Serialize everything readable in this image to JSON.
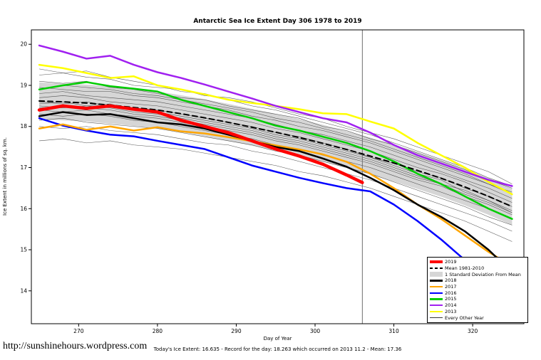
{
  "page": {
    "url_text": "http://sunshinehours.wordpress.com"
  },
  "chart_data": {
    "type": "line",
    "title": "Antarctic Sea Ice Extent Day 306 1978 to 2019",
    "xlabel": "Day of Year",
    "ylabel": "Ice Extent in millions of sq. km.",
    "footer": "Today's Ice Extent: 16.635  - Record for the day: 18.263 which occurred on 2013 11.2  - Mean: 17.36",
    "stats": {
      "today_extent": 16.635,
      "record": 18.263,
      "record_date": "2013 11.2",
      "mean": 17.36,
      "day": 306
    },
    "xlim": [
      264,
      326.5
    ],
    "ylim": [
      13.2,
      20.35
    ],
    "xticks": [
      270,
      280,
      290,
      300,
      310,
      320
    ],
    "yticks": [
      14,
      15,
      16,
      17,
      18,
      19,
      20
    ],
    "vline_x": 306,
    "grid": false,
    "legend_position": "bottom-right",
    "x": [
      265,
      268,
      271,
      274,
      277,
      280,
      283,
      286,
      289,
      292,
      295,
      298,
      301,
      304,
      307,
      310,
      313,
      316,
      319,
      322,
      325
    ],
    "band": {
      "label": "1 Standard Deviation From Mean",
      "color": "#D6D6D6",
      "upper": [
        19.07,
        19.05,
        19.02,
        18.97,
        18.91,
        18.85,
        18.76,
        18.66,
        18.55,
        18.43,
        18.31,
        18.18,
        18.04,
        17.89,
        17.73,
        17.56,
        17.38,
        17.19,
        16.98,
        16.75,
        16.5
      ],
      "lower": [
        18.17,
        18.15,
        18.12,
        18.07,
        18.01,
        17.95,
        17.86,
        17.76,
        17.65,
        17.53,
        17.41,
        17.28,
        17.14,
        16.99,
        16.83,
        16.66,
        16.48,
        16.29,
        16.08,
        15.85,
        15.6
      ]
    },
    "series": [
      {
        "label": "2013",
        "color": "#FFFF00",
        "width": 2.5,
        "y": [
          19.5,
          19.42,
          19.3,
          19.18,
          19.22,
          19.0,
          18.9,
          18.78,
          18.65,
          18.57,
          18.5,
          18.42,
          18.32,
          18.3,
          18.12,
          17.95,
          17.6,
          17.3,
          17.0,
          16.65,
          16.35
        ]
      },
      {
        "label": "2014",
        "color": "#A020F0",
        "width": 2.5,
        "y": [
          19.97,
          19.82,
          19.65,
          19.72,
          19.5,
          19.32,
          19.18,
          19.02,
          18.85,
          18.68,
          18.5,
          18.35,
          18.2,
          18.1,
          17.85,
          17.55,
          17.3,
          17.1,
          16.9,
          16.7,
          16.55
        ]
      },
      {
        "label": "2015",
        "color": "#00CD00",
        "width": 2.5,
        "y": [
          18.9,
          19.0,
          19.08,
          18.98,
          18.92,
          18.85,
          18.65,
          18.5,
          18.35,
          18.2,
          18.02,
          17.9,
          17.75,
          17.6,
          17.4,
          17.15,
          16.85,
          16.6,
          16.3,
          16.0,
          15.75
        ]
      },
      {
        "label": "2016",
        "color": "#0000FF",
        "width": 2.5,
        "y": [
          18.2,
          18.02,
          17.9,
          17.8,
          17.76,
          17.65,
          17.55,
          17.45,
          17.25,
          17.05,
          16.9,
          16.75,
          16.62,
          16.5,
          16.42,
          16.1,
          15.7,
          15.25,
          14.75,
          14.3,
          13.8
        ]
      },
      {
        "label": "2017",
        "color": "#FFA500",
        "width": 2.5,
        "y": [
          17.95,
          18.05,
          17.92,
          18.0,
          17.9,
          17.98,
          17.88,
          17.83,
          17.74,
          17.64,
          17.54,
          17.44,
          17.32,
          17.14,
          16.85,
          16.5,
          16.1,
          15.75,
          15.35,
          14.95,
          14.6
        ]
      },
      {
        "label": "2018",
        "color": "#000000",
        "width": 2.5,
        "y": [
          18.25,
          18.35,
          18.28,
          18.3,
          18.2,
          18.1,
          18.05,
          17.95,
          17.8,
          17.65,
          17.5,
          17.4,
          17.22,
          17.02,
          16.75,
          16.45,
          16.1,
          15.8,
          15.45,
          15.0,
          14.45
        ]
      },
      {
        "label": "Mean 1981-2010",
        "color": "#000000",
        "width": 2,
        "dash": true,
        "y": [
          18.62,
          18.6,
          18.57,
          18.52,
          18.46,
          18.4,
          18.31,
          18.21,
          18.1,
          17.98,
          17.86,
          17.73,
          17.59,
          17.44,
          17.28,
          17.11,
          16.93,
          16.74,
          16.53,
          16.3,
          16.05
        ]
      },
      {
        "label": "2019",
        "color": "#FF0000",
        "width": 4.5,
        "x": [
          265,
          268,
          271,
          274,
          277,
          280,
          283,
          286,
          289,
          292,
          295,
          298,
          301,
          304,
          306
        ],
        "y": [
          18.4,
          18.5,
          18.44,
          18.5,
          18.42,
          18.35,
          18.15,
          18.0,
          17.85,
          17.65,
          17.45,
          17.28,
          17.08,
          16.82,
          16.635
        ]
      }
    ],
    "background_series": {
      "label": "Every Other Year",
      "color": "#3A3A3A",
      "width": 0.55,
      "lines": [
        [
          19.25,
          19.3,
          19.2,
          19.15,
          19.0,
          18.95,
          18.9,
          18.75,
          18.7,
          18.6,
          18.45,
          18.3,
          18.2,
          18.0,
          17.85,
          17.7,
          17.5,
          17.3,
          17.1,
          16.9,
          16.6
        ],
        [
          19.1,
          19.05,
          19.1,
          18.95,
          18.9,
          18.8,
          18.7,
          18.65,
          18.5,
          18.4,
          18.3,
          18.2,
          18.0,
          17.9,
          17.7,
          17.55,
          17.35,
          17.15,
          16.95,
          16.7,
          16.5
        ],
        [
          18.95,
          18.9,
          18.85,
          18.85,
          18.75,
          18.7,
          18.6,
          18.5,
          18.4,
          18.25,
          18.15,
          18.0,
          17.9,
          17.75,
          17.6,
          17.4,
          17.2,
          17.0,
          16.8,
          16.6,
          16.35
        ],
        [
          18.8,
          18.85,
          18.75,
          18.7,
          18.65,
          18.6,
          18.5,
          18.4,
          18.3,
          18.2,
          18.05,
          17.9,
          17.8,
          17.65,
          17.5,
          17.3,
          17.1,
          16.9,
          16.7,
          16.5,
          16.25
        ],
        [
          18.7,
          18.75,
          18.7,
          18.6,
          18.55,
          18.5,
          18.4,
          18.3,
          18.2,
          18.1,
          17.95,
          17.85,
          17.7,
          17.55,
          17.4,
          17.2,
          17.0,
          16.85,
          16.65,
          16.4,
          16.15
        ],
        [
          18.6,
          18.55,
          18.6,
          18.5,
          18.45,
          18.4,
          18.3,
          18.2,
          18.1,
          18.0,
          17.85,
          17.75,
          17.6,
          17.45,
          17.25,
          17.1,
          16.9,
          16.75,
          16.5,
          16.3,
          16.05
        ],
        [
          18.5,
          18.45,
          18.5,
          18.45,
          18.35,
          18.3,
          18.2,
          18.1,
          18.0,
          17.9,
          17.75,
          17.65,
          17.5,
          17.35,
          17.2,
          17.0,
          16.8,
          16.6,
          16.45,
          16.2,
          15.95
        ],
        [
          18.4,
          18.35,
          18.4,
          18.3,
          18.25,
          18.2,
          18.1,
          18.0,
          17.9,
          17.8,
          17.65,
          17.55,
          17.4,
          17.25,
          17.1,
          16.9,
          16.7,
          16.55,
          16.3,
          16.1,
          15.85
        ],
        [
          18.3,
          18.25,
          18.3,
          18.25,
          18.15,
          18.1,
          18.0,
          17.9,
          17.8,
          17.7,
          17.55,
          17.45,
          17.3,
          17.15,
          17.0,
          16.8,
          16.6,
          16.4,
          16.2,
          16.0,
          15.75
        ],
        [
          18.15,
          18.2,
          18.1,
          18.05,
          18.0,
          17.95,
          17.85,
          17.75,
          17.65,
          17.55,
          17.4,
          17.3,
          17.15,
          17.0,
          16.85,
          16.65,
          16.45,
          16.25,
          16.05,
          15.8,
          15.6
        ],
        [
          18.0,
          17.95,
          18.0,
          17.9,
          17.85,
          17.8,
          17.7,
          17.6,
          17.55,
          17.4,
          17.3,
          17.15,
          17.0,
          16.85,
          16.7,
          16.5,
          16.3,
          16.1,
          15.9,
          15.7,
          15.45
        ],
        [
          17.65,
          17.7,
          17.6,
          17.65,
          17.55,
          17.5,
          17.45,
          17.35,
          17.25,
          17.15,
          17.05,
          16.9,
          16.8,
          16.65,
          16.5,
          16.3,
          16.1,
          15.9,
          15.7,
          15.45,
          15.2
        ],
        [
          19.4,
          19.3,
          19.35,
          19.2,
          19.1,
          19.0,
          18.85,
          18.8,
          18.65,
          18.5,
          18.4,
          18.25,
          18.1,
          17.95,
          17.8,
          17.6,
          17.4,
          17.2,
          17.0,
          16.75,
          16.55
        ],
        [
          18.9,
          19.0,
          18.95,
          18.9,
          18.8,
          18.75,
          18.65,
          18.55,
          18.45,
          18.35,
          18.2,
          18.1,
          17.95,
          17.8,
          17.65,
          17.45,
          17.25,
          17.05,
          16.85,
          16.6,
          16.4
        ],
        [
          18.55,
          18.6,
          18.5,
          18.55,
          18.4,
          18.35,
          18.25,
          18.15,
          18.05,
          17.95,
          17.8,
          17.7,
          17.55,
          17.4,
          17.25,
          17.05,
          16.85,
          16.7,
          16.4,
          16.2,
          15.9
        ],
        [
          18.45,
          18.5,
          18.45,
          18.4,
          18.3,
          18.25,
          18.15,
          18.05,
          17.95,
          17.85,
          17.7,
          17.6,
          17.45,
          17.3,
          17.15,
          16.95,
          16.75,
          16.6,
          16.35,
          16.15,
          15.9
        ]
      ]
    },
    "legend": [
      {
        "label": "2019",
        "color": "#FF0000",
        "sample": "thick"
      },
      {
        "label": "Mean 1981-2010",
        "color": "#000000",
        "sample": "dashed"
      },
      {
        "label": "1 Standard Deviation From Mean",
        "color": "#D6D6D6",
        "sample": "band"
      },
      {
        "label": "2018",
        "color": "#000000",
        "sample": "line"
      },
      {
        "label": "2017",
        "color": "#FFA500",
        "sample": "line"
      },
      {
        "label": "2016",
        "color": "#0000FF",
        "sample": "line"
      },
      {
        "label": "2015",
        "color": "#00CD00",
        "sample": "line"
      },
      {
        "label": "2014",
        "color": "#A020F0",
        "sample": "line"
      },
      {
        "label": "2013",
        "color": "#FFFF00",
        "sample": "line"
      },
      {
        "label": "Every Other Year",
        "color": "#3A3A3A",
        "sample": "thin"
      }
    ]
  }
}
